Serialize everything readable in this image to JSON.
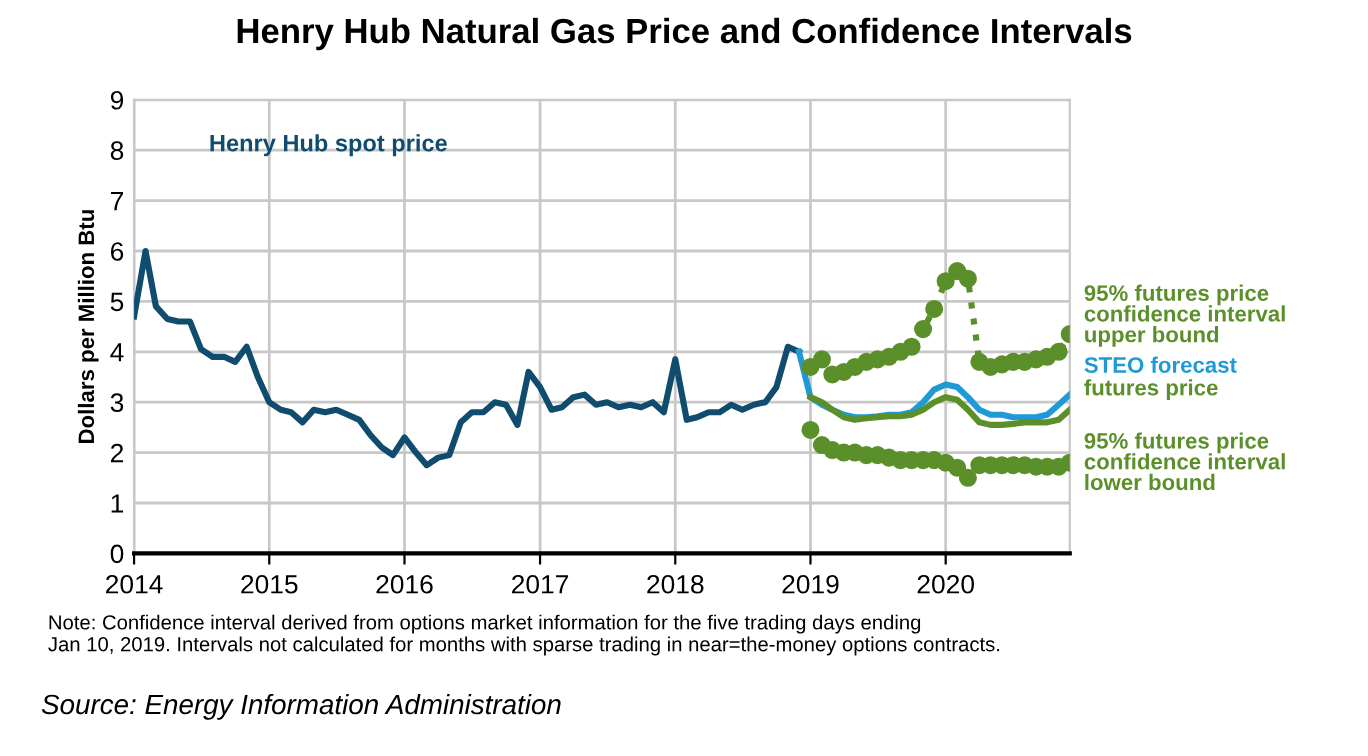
{
  "chart_data": {
    "type": "line",
    "title": "Henry Hub Natural Gas Price and Confidence Intervals",
    "ylabel": "Dollars per Million Btu",
    "xlim": [
      "2014-01",
      "2020-12"
    ],
    "xticks": [
      {
        "value": "2014-01",
        "label": "2014"
      },
      {
        "value": "2015-01",
        "label": "2015"
      },
      {
        "value": "2016-01",
        "label": "2016"
      },
      {
        "value": "2017-01",
        "label": "2017"
      },
      {
        "value": "2018-01",
        "label": "2018"
      },
      {
        "value": "2019-01",
        "label": "2019"
      },
      {
        "value": "2020-01",
        "label": "2020"
      }
    ],
    "ylim": [
      0,
      9
    ],
    "yticks": [
      0,
      1,
      2,
      3,
      4,
      5,
      6,
      7,
      8,
      9
    ],
    "grid": true,
    "legend": "right",
    "series": [
      {
        "name": "Henry Hub spot price",
        "color": "#0f4c6e",
        "marker": "none",
        "line_style": "solid",
        "x": [
          "2014-01",
          "2014-02",
          "2014-03",
          "2014-04",
          "2014-05",
          "2014-06",
          "2014-07",
          "2014-08",
          "2014-09",
          "2014-10",
          "2014-11",
          "2014-12",
          "2015-01",
          "2015-02",
          "2015-03",
          "2015-04",
          "2015-05",
          "2015-06",
          "2015-07",
          "2015-08",
          "2015-09",
          "2015-10",
          "2015-11",
          "2015-12",
          "2016-01",
          "2016-02",
          "2016-03",
          "2016-04",
          "2016-05",
          "2016-06",
          "2016-07",
          "2016-08",
          "2016-09",
          "2016-10",
          "2016-11",
          "2016-12",
          "2017-01",
          "2017-02",
          "2017-03",
          "2017-04",
          "2017-05",
          "2017-06",
          "2017-07",
          "2017-08",
          "2017-09",
          "2017-10",
          "2017-11",
          "2017-12",
          "2018-01",
          "2018-02",
          "2018-03",
          "2018-04",
          "2018-05",
          "2018-06",
          "2018-07",
          "2018-08",
          "2018-09",
          "2018-10",
          "2018-11",
          "2018-12"
        ],
        "values": [
          4.7,
          6.0,
          4.9,
          4.65,
          4.6,
          4.6,
          4.05,
          3.9,
          3.9,
          3.8,
          4.1,
          3.5,
          3.0,
          2.85,
          2.8,
          2.6,
          2.85,
          2.8,
          2.85,
          2.75,
          2.65,
          2.35,
          2.1,
          1.95,
          2.3,
          2.0,
          1.75,
          1.9,
          1.95,
          2.6,
          2.8,
          2.8,
          3.0,
          2.95,
          2.55,
          3.6,
          3.3,
          2.85,
          2.9,
          3.1,
          3.15,
          2.95,
          3.0,
          2.9,
          2.95,
          2.9,
          3.0,
          2.8,
          3.85,
          2.65,
          2.7,
          2.8,
          2.8,
          2.95,
          2.85,
          2.95,
          3.0,
          3.3,
          4.1,
          4.0
        ]
      },
      {
        "name": "STEO forecast",
        "color": "#1f9ad6",
        "marker": "none",
        "line_style": "solid",
        "x": [
          "2018-12",
          "2019-01",
          "2019-02",
          "2019-03",
          "2019-04",
          "2019-05",
          "2019-06",
          "2019-07",
          "2019-08",
          "2019-09",
          "2019-10",
          "2019-11",
          "2019-12",
          "2020-01",
          "2020-02",
          "2020-03",
          "2020-04",
          "2020-05",
          "2020-06",
          "2020-07",
          "2020-08",
          "2020-09",
          "2020-10",
          "2020-11",
          "2020-12"
        ],
        "values": [
          4.0,
          3.1,
          2.95,
          2.85,
          2.75,
          2.7,
          2.7,
          2.72,
          2.75,
          2.75,
          2.8,
          3.0,
          3.25,
          3.35,
          3.3,
          3.1,
          2.85,
          2.75,
          2.75,
          2.7,
          2.7,
          2.7,
          2.75,
          2.95,
          3.15
        ]
      },
      {
        "name": "futures price",
        "color": "#5b8f29",
        "marker": "none",
        "line_style": "solid",
        "x": [
          "2019-01",
          "2019-02",
          "2019-03",
          "2019-04",
          "2019-05",
          "2019-06",
          "2019-07",
          "2019-08",
          "2019-09",
          "2019-10",
          "2019-11",
          "2019-12",
          "2020-01",
          "2020-02",
          "2020-03",
          "2020-04",
          "2020-05",
          "2020-06",
          "2020-07",
          "2020-08",
          "2020-09",
          "2020-10",
          "2020-11",
          "2020-12"
        ],
        "values": [
          3.1,
          3.0,
          2.85,
          2.7,
          2.65,
          2.68,
          2.7,
          2.72,
          2.72,
          2.75,
          2.85,
          3.0,
          3.1,
          3.05,
          2.85,
          2.6,
          2.55,
          2.55,
          2.57,
          2.6,
          2.6,
          2.6,
          2.65,
          2.85
        ]
      },
      {
        "name": "95% futures price confidence interval upper bound",
        "color": "#5b8f29",
        "marker": "circle",
        "line_style": "dotted",
        "x": [
          "2019-01",
          "2019-02",
          "2019-03",
          "2019-04",
          "2019-05",
          "2019-06",
          "2019-07",
          "2019-08",
          "2019-09",
          "2019-10",
          "2019-11",
          "2019-12",
          "2020-01",
          "2020-02",
          "2020-03",
          "2020-04",
          "2020-05",
          "2020-06",
          "2020-07",
          "2020-08",
          "2020-09",
          "2020-10",
          "2020-11",
          "2020-12"
        ],
        "values": [
          3.7,
          3.85,
          3.55,
          3.6,
          3.7,
          3.8,
          3.85,
          3.9,
          4.0,
          4.1,
          4.45,
          4.85,
          5.4,
          5.6,
          5.45,
          3.8,
          3.7,
          3.75,
          3.8,
          3.8,
          3.85,
          3.9,
          4.0,
          4.35
        ]
      },
      {
        "name": "95% futures price confidence interval lower bound",
        "type": "scatter",
        "color": "#5b8f29",
        "marker": "circle",
        "x": [
          "2019-01",
          "2019-02",
          "2019-03",
          "2019-04",
          "2019-05",
          "2019-06",
          "2019-07",
          "2019-08",
          "2019-09",
          "2019-10",
          "2019-11",
          "2019-12",
          "2020-01",
          "2020-02",
          "2020-03",
          "2020-04",
          "2020-05",
          "2020-06",
          "2020-07",
          "2020-08",
          "2020-09",
          "2020-10",
          "2020-11",
          "2020-12"
        ],
        "values": [
          2.45,
          2.15,
          2.05,
          2.0,
          2.0,
          1.95,
          1.95,
          1.9,
          1.85,
          1.85,
          1.85,
          1.85,
          1.8,
          1.7,
          1.5,
          1.75,
          1.75,
          1.75,
          1.75,
          1.75,
          1.72,
          1.72,
          1.72,
          1.8
        ]
      }
    ],
    "annotations": [
      "Note: Confidence interval derived from options market information for the five trading days ending\nJan 10, 2019. Intervals not calculated for months with sparse trading in near=the-money options contracts.",
      "Source: Energy Information Administration"
    ]
  }
}
